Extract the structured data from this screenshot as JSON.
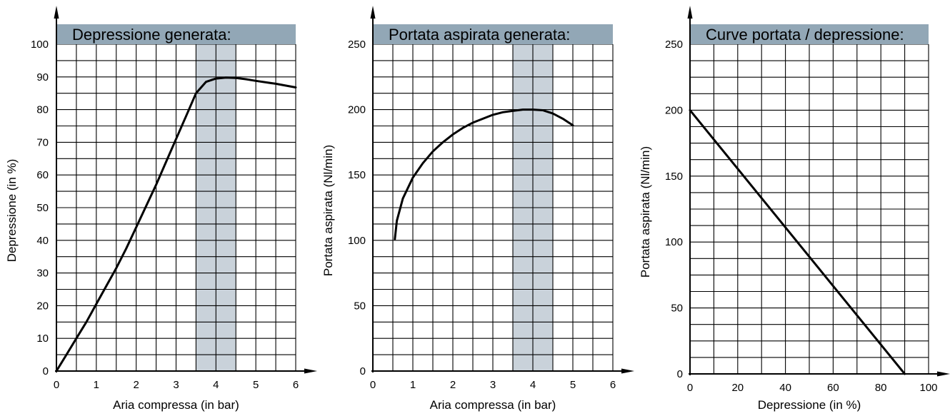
{
  "chart_data": [
    {
      "type": "line",
      "title": "Depressione generata:",
      "xlabel": "Aria compressa (in bar)",
      "ylabel": "Depressione (in %)",
      "xlim": [
        0,
        6
      ],
      "ylim": [
        0,
        100
      ],
      "x_ticks": [
        "0",
        "1",
        "2",
        "3",
        "4",
        "5",
        "6"
      ],
      "y_ticks": [
        "0",
        "10",
        "20",
        "30",
        "40",
        "50",
        "60",
        "70",
        "80",
        "90",
        "100"
      ],
      "grid": true,
      "highlight_band": {
        "from": 3.5,
        "to": 4.5
      },
      "series": [
        {
          "x": [
            0,
            0.25,
            0.5,
            0.75,
            1.0,
            1.25,
            1.5,
            1.75,
            2.0,
            2.25,
            2.5,
            2.75,
            3.0,
            3.25,
            3.5,
            3.75,
            4.0,
            4.25,
            4.5,
            4.75,
            5.0,
            5.5,
            6.0
          ],
          "y": [
            0,
            5,
            10,
            15,
            20.5,
            26,
            31.5,
            37.5,
            44,
            50.5,
            57,
            64,
            71,
            78,
            85,
            88.5,
            89.5,
            89.8,
            89.7,
            89.3,
            88.8,
            87.9,
            86.8
          ]
        }
      ]
    },
    {
      "type": "line",
      "title": "Portata aspirata generata:",
      "xlabel": "Aria compressa (in bar)",
      "ylabel": "Portata aspirata (Nl/min)",
      "xlim": [
        0,
        6
      ],
      "ylim": [
        0,
        250
      ],
      "x_ticks": [
        "0",
        "1",
        "2",
        "3",
        "4",
        "5",
        "6"
      ],
      "y_ticks": [
        "0",
        "50",
        "100",
        "150",
        "200",
        "250"
      ],
      "grid": true,
      "highlight_band": {
        "from": 3.5,
        "to": 4.5
      },
      "series": [
        {
          "x": [
            0.55,
            0.6,
            0.75,
            1.0,
            1.25,
            1.5,
            1.75,
            2.0,
            2.25,
            2.5,
            2.75,
            3.0,
            3.25,
            3.5,
            3.75,
            4.0,
            4.25,
            4.5,
            4.75,
            5.0
          ],
          "y": [
            101,
            115,
            132,
            148,
            159,
            168,
            175,
            181,
            186,
            190,
            193,
            196,
            198,
            199,
            200,
            200,
            199.5,
            197,
            193,
            188
          ]
        }
      ]
    },
    {
      "type": "line",
      "title": "Curve portata / depressione:",
      "xlabel": "Depressione (in %)",
      "ylabel": "Portata aspirata (Nl/min)",
      "xlim": [
        0,
        100
      ],
      "ylim": [
        0,
        250
      ],
      "x_ticks": [
        "0",
        "20",
        "40",
        "60",
        "80",
        "100"
      ],
      "y_ticks": [
        "0",
        "50",
        "100",
        "150",
        "200",
        "250"
      ],
      "grid": true,
      "series": [
        {
          "x": [
            0,
            90
          ],
          "y": [
            200,
            0
          ]
        }
      ]
    }
  ],
  "colors": {
    "title_band": "#92a7b6",
    "highlight": "#c9d2da",
    "grid": "#000000",
    "line": "#000000"
  }
}
